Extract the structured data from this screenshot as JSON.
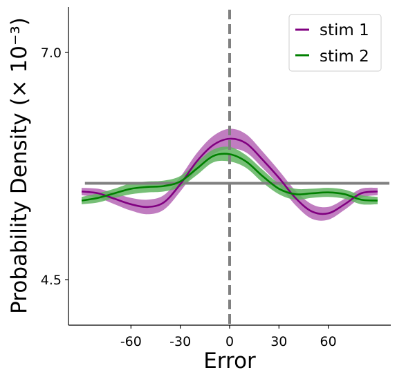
{
  "chart_data": {
    "type": "line",
    "xlabel": "Error",
    "ylabel": "Probability Density (× 10⁻³)",
    "xlim": [
      -98,
      98
    ],
    "ylim": [
      4.0,
      7.5
    ],
    "xticks": [
      -60,
      -30,
      0,
      30,
      60
    ],
    "xtick_labels": [
      "-60",
      "-30",
      "0",
      "30",
      "60"
    ],
    "yticks": [
      4.5,
      7.0
    ],
    "ytick_labels": [
      "4.5",
      "7.0"
    ],
    "legend_position": "top-right",
    "reference_lines": {
      "vertical_x": 0,
      "horizontal_y": 5.56
    },
    "grid": false,
    "x": [
      -90,
      -80,
      -70,
      -60,
      -50,
      -40,
      -30,
      -20,
      -10,
      0,
      10,
      20,
      30,
      40,
      50,
      60,
      70,
      80,
      90
    ],
    "series": [
      {
        "name": "stim 1",
        "color": "#800080",
        "band_color": "#b566b5",
        "values": [
          5.47,
          5.45,
          5.39,
          5.33,
          5.3,
          5.35,
          5.55,
          5.8,
          5.98,
          6.05,
          6.0,
          5.82,
          5.62,
          5.4,
          5.25,
          5.23,
          5.33,
          5.45,
          5.47
        ],
        "band_halfwidth": [
          0.04,
          0.05,
          0.06,
          0.07,
          0.08,
          0.08,
          0.08,
          0.09,
          0.1,
          0.11,
          0.1,
          0.09,
          0.08,
          0.08,
          0.08,
          0.07,
          0.06,
          0.05,
          0.04
        ]
      },
      {
        "name": "stim 2",
        "color": "#008000",
        "band_color": "#5fb45f",
        "values": [
          5.37,
          5.4,
          5.45,
          5.5,
          5.52,
          5.53,
          5.58,
          5.72,
          5.86,
          5.88,
          5.8,
          5.64,
          5.5,
          5.44,
          5.45,
          5.46,
          5.44,
          5.38,
          5.37
        ],
        "band_halfwidth": [
          0.04,
          0.05,
          0.05,
          0.06,
          0.06,
          0.06,
          0.06,
          0.07,
          0.07,
          0.08,
          0.07,
          0.07,
          0.06,
          0.06,
          0.05,
          0.05,
          0.05,
          0.05,
          0.04
        ]
      }
    ]
  }
}
